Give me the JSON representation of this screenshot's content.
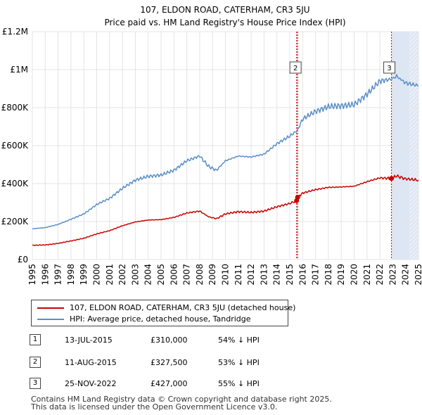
{
  "chart_data": {
    "type": "line",
    "title": "107, ELDON ROAD, CATERHAM, CR3 5JU",
    "subtitle": "Price paid vs. HM Land Registry's House Price Index (HPI)",
    "xlim": [
      1995,
      2025
    ],
    "ylim": [
      0,
      1200000
    ],
    "x_ticks": [
      "1995",
      "1996",
      "1997",
      "1998",
      "1999",
      "2000",
      "2001",
      "2002",
      "2003",
      "2004",
      "2005",
      "2006",
      "2007",
      "2008",
      "2009",
      "2010",
      "2011",
      "2012",
      "2013",
      "2014",
      "2015",
      "2016",
      "2017",
      "2018",
      "2019",
      "2020",
      "2021",
      "2022",
      "2023",
      "2024",
      "2025"
    ],
    "y_ticks": [
      {
        "value": 0,
        "label": "£0"
      },
      {
        "value": 200000,
        "label": "£200K"
      },
      {
        "value": 400000,
        "label": "£400K"
      },
      {
        "value": 600000,
        "label": "£600K"
      },
      {
        "value": 800000,
        "label": "£800K"
      },
      {
        "value": 1000000,
        "label": "£1M"
      },
      {
        "value": 1200000,
        "label": "£1.2M"
      }
    ],
    "grid": true,
    "hatched_future_start": 2024.3,
    "series": [
      {
        "name": "107, ELDON ROAD, CATERHAM, CR3 5JU (detached house)",
        "color": "#cc0000",
        "points": [
          [
            1995,
            75000
          ],
          [
            1996,
            77000
          ],
          [
            1997,
            85000
          ],
          [
            1998,
            98000
          ],
          [
            1999,
            112000
          ],
          [
            2000,
            135000
          ],
          [
            2001,
            152000
          ],
          [
            2002,
            178000
          ],
          [
            2003,
            198000
          ],
          [
            2004,
            208000
          ],
          [
            2005,
            210000
          ],
          [
            2006,
            222000
          ],
          [
            2007,
            245000
          ],
          [
            2008,
            255000
          ],
          [
            2008.7,
            225000
          ],
          [
            2009.3,
            215000
          ],
          [
            2010,
            240000
          ],
          [
            2011,
            252000
          ],
          [
            2012,
            248000
          ],
          [
            2013,
            255000
          ],
          [
            2014,
            278000
          ],
          [
            2015,
            295000
          ],
          [
            2015.53,
            310000
          ],
          [
            2015.61,
            327500
          ],
          [
            2016,
            350000
          ],
          [
            2017,
            368000
          ],
          [
            2018,
            380000
          ],
          [
            2019,
            382000
          ],
          [
            2020,
            386000
          ],
          [
            2021,
            410000
          ],
          [
            2022,
            430000
          ],
          [
            2022.9,
            427000
          ],
          [
            2023.3,
            440000
          ],
          [
            2024,
            425000
          ],
          [
            2025,
            418000
          ]
        ]
      },
      {
        "name": "HPI: Average price, detached house, Tandridge",
        "color": "#5a8fc6",
        "points": [
          [
            1995,
            162000
          ],
          [
            1996,
            168000
          ],
          [
            1997,
            185000
          ],
          [
            1998,
            212000
          ],
          [
            1999,
            240000
          ],
          [
            2000,
            290000
          ],
          [
            2001,
            322000
          ],
          [
            2002,
            375000
          ],
          [
            2003,
            418000
          ],
          [
            2004,
            438000
          ],
          [
            2005,
            445000
          ],
          [
            2006,
            470000
          ],
          [
            2007,
            520000
          ],
          [
            2008,
            545000
          ],
          [
            2008.7,
            490000
          ],
          [
            2009.3,
            470000
          ],
          [
            2010,
            520000
          ],
          [
            2011,
            545000
          ],
          [
            2012,
            540000
          ],
          [
            2013,
            555000
          ],
          [
            2014,
            610000
          ],
          [
            2015,
            650000
          ],
          [
            2015.6,
            680000
          ],
          [
            2016,
            740000
          ],
          [
            2017,
            780000
          ],
          [
            2018,
            805000
          ],
          [
            2019,
            810000
          ],
          [
            2020,
            815000
          ],
          [
            2021,
            870000
          ],
          [
            2022,
            940000
          ],
          [
            2022.9,
            950000
          ],
          [
            2023.3,
            965000
          ],
          [
            2024,
            930000
          ],
          [
            2025,
            915000
          ]
        ]
      }
    ],
    "sales": [
      {
        "id": "1",
        "date": "13-JUL-2015",
        "x": 2015.53,
        "price": 310000,
        "price_label": "£310,000",
        "hpi": "54% ↓ HPI"
      },
      {
        "id": "2",
        "date": "11-AUG-2015",
        "x": 2015.61,
        "price": 327500,
        "price_label": "£327,500",
        "hpi": "53% ↓ HPI"
      },
      {
        "id": "3",
        "date": "25-NOV-2022",
        "x": 2022.9,
        "price": 427000,
        "price_label": "£427,000",
        "hpi": "55% ↓ HPI"
      }
    ],
    "marker_labels_on_chart": [
      "2",
      "3"
    ]
  },
  "legend": {
    "property_label": "107, ELDON ROAD, CATERHAM, CR3 5JU (detached house)",
    "hpi_label": "HPI: Average price, detached house, Tandridge"
  },
  "footer": {
    "line1": "Contains HM Land Registry data © Crown copyright and database right 2025.",
    "line2": "This data is licensed under the Open Government Licence v3.0."
  }
}
